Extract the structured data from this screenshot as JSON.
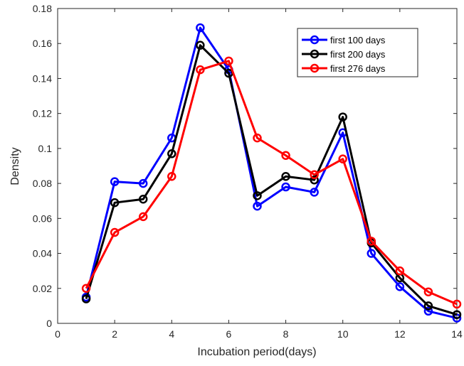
{
  "chart_data": {
    "type": "line",
    "xlabel": "Incubation period(days)",
    "ylabel": "Density",
    "xlim": [
      0,
      14
    ],
    "ylim": [
      0,
      0.18
    ],
    "xticks": [
      0,
      2,
      4,
      6,
      8,
      10,
      12,
      14
    ],
    "yticks": [
      0,
      0.02,
      0.04,
      0.06,
      0.08,
      0.1,
      0.12,
      0.14,
      0.16,
      0.18
    ],
    "xtick_labels": [
      "0",
      "2",
      "4",
      "6",
      "8",
      "10",
      "12",
      "14"
    ],
    "ytick_labels": [
      "0",
      "0.02",
      "0.04",
      "0.06",
      "0.08",
      "0.1",
      "0.12",
      "0.14",
      "0.16",
      "0.18"
    ],
    "grid": false,
    "legend_position": "top-right",
    "x": [
      1,
      2,
      3,
      4,
      5,
      6,
      7,
      8,
      9,
      10,
      11,
      12,
      13,
      14
    ],
    "series": [
      {
        "name": "first 100 days",
        "color": "#0000ff",
        "values": [
          0.015,
          0.081,
          0.08,
          0.106,
          0.169,
          0.145,
          0.067,
          0.078,
          0.075,
          0.109,
          0.04,
          0.021,
          0.007,
          0.003
        ]
      },
      {
        "name": "first 200 days",
        "color": "#000000",
        "values": [
          0.014,
          0.069,
          0.071,
          0.097,
          0.159,
          0.143,
          0.073,
          0.084,
          0.082,
          0.118,
          0.046,
          0.026,
          0.01,
          0.005
        ]
      },
      {
        "name": "first 276 days",
        "color": "#ff0000",
        "values": [
          0.02,
          0.052,
          0.061,
          0.084,
          0.145,
          0.15,
          0.106,
          0.096,
          0.085,
          0.094,
          0.047,
          0.03,
          0.018,
          0.011
        ]
      }
    ]
  }
}
